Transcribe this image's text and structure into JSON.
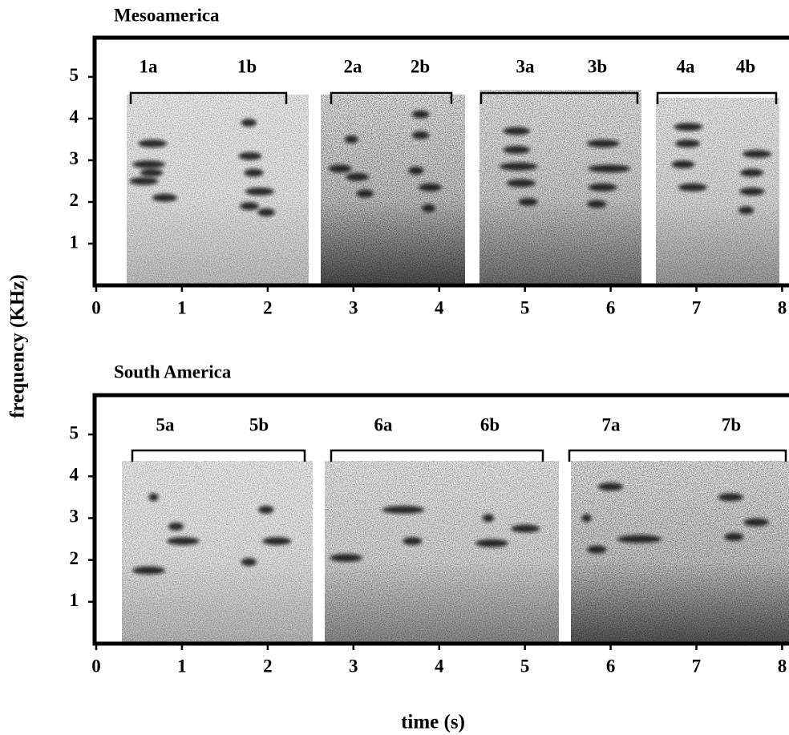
{
  "chart_data": [
    {
      "type": "spectrogram",
      "title": "Mesoamerica",
      "annotations": [
        "1a",
        "1b",
        "2a",
        "2b",
        "3a",
        "3b",
        "4a",
        "4b"
      ],
      "xlim": [
        0,
        8.08
      ],
      "xticks": [
        0,
        1,
        2,
        3,
        4,
        5,
        6,
        7,
        8
      ],
      "ylim": [
        0,
        5.94
      ],
      "yticks": [
        1,
        2,
        3,
        4,
        5
      ],
      "ylabel": "frequency (KHz)"
    },
    {
      "type": "spectrogram",
      "title": "South America",
      "annotations": [
        "5a",
        "5b",
        "6a",
        "6b",
        "7a",
        "7b"
      ],
      "xlim": [
        0,
        8.08
      ],
      "xticks": [
        0,
        1,
        2,
        3,
        4,
        5,
        6,
        7,
        8
      ],
      "ylim": [
        0,
        5.94
      ],
      "yticks": [
        1,
        2,
        3,
        4,
        5
      ],
      "xlabel": "time (s)"
    }
  ]
}
